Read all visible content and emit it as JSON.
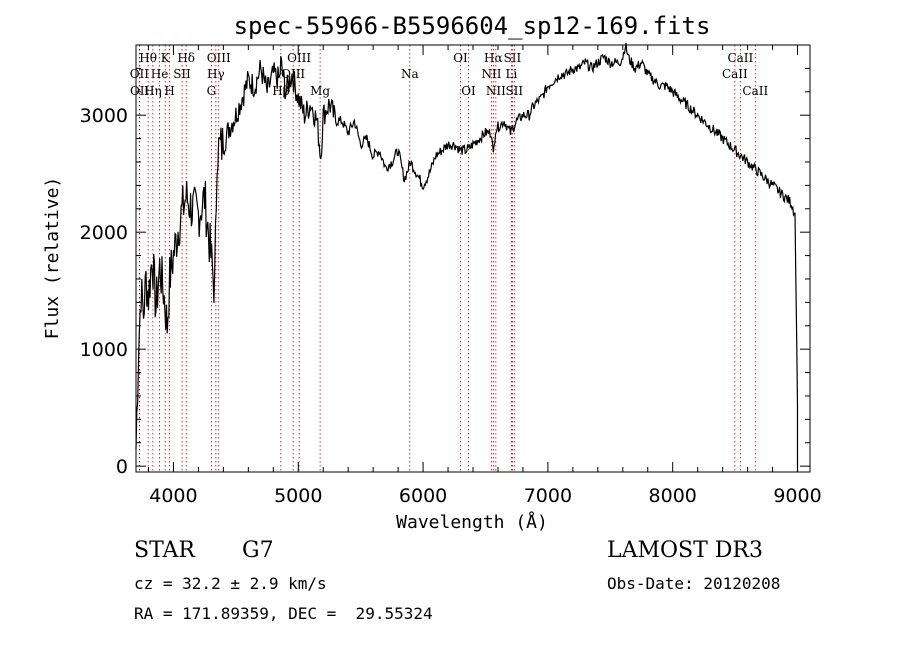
{
  "chart_data": {
    "type": "line",
    "title": "spec-55966-B5596604_sp12-169.fits",
    "xlabel": "Wavelength (Å)",
    "ylabel": "Flux (relative)",
    "xlim": [
      3700,
      9100
    ],
    "ylim": [
      -50,
      3600
    ],
    "xticks": [
      4000,
      5000,
      6000,
      7000,
      8000,
      9000
    ],
    "yticks": [
      0,
      1000,
      2000,
      3000
    ],
    "grid": false,
    "series": [
      {
        "name": "flux",
        "x": [
          3700,
          3720,
          3740,
          3760,
          3780,
          3800,
          3830,
          3860,
          3890,
          3920,
          3950,
          3970,
          4000,
          4050,
          4100,
          4150,
          4200,
          4250,
          4300,
          4330,
          4350,
          4400,
          4450,
          4500,
          4550,
          4600,
          4650,
          4700,
          4750,
          4800,
          4850,
          4860,
          4900,
          4950,
          5000,
          5050,
          5100,
          5150,
          5180,
          5200,
          5250,
          5300,
          5350,
          5400,
          5450,
          5500,
          5550,
          5600,
          5650,
          5700,
          5750,
          5800,
          5850,
          5900,
          5950,
          6000,
          6050,
          6100,
          6150,
          6200,
          6250,
          6300,
          6350,
          6400,
          6450,
          6500,
          6550,
          6563,
          6580,
          6600,
          6650,
          6700,
          6750,
          6800,
          6850,
          6870,
          6900,
          6950,
          7000,
          7050,
          7100,
          7150,
          7200,
          7250,
          7300,
          7350,
          7400,
          7450,
          7500,
          7550,
          7580,
          7600,
          7620,
          7650,
          7700,
          7750,
          7800,
          7850,
          7900,
          7950,
          8000,
          8050,
          8100,
          8150,
          8200,
          8250,
          8300,
          8350,
          8400,
          8450,
          8500,
          8550,
          8600,
          8650,
          8700,
          8750,
          8800,
          8850,
          8900,
          8950,
          8980,
          9000
        ],
        "values": [
          150,
          1000,
          1500,
          1300,
          1600,
          1450,
          1800,
          1350,
          1700,
          1500,
          1200,
          1600,
          1800,
          2100,
          2300,
          2200,
          2150,
          2300,
          1800,
          1500,
          2700,
          2750,
          2900,
          3000,
          3150,
          3300,
          3250,
          3400,
          3200,
          3350,
          3300,
          3450,
          3200,
          3350,
          3150,
          3000,
          3100,
          2950,
          2650,
          3000,
          3100,
          2950,
          2950,
          2850,
          2950,
          2750,
          2800,
          2650,
          2700,
          2550,
          2600,
          2700,
          2450,
          2600,
          2500,
          2400,
          2500,
          2650,
          2700,
          2750,
          2750,
          2700,
          2700,
          2750,
          2800,
          2850,
          2850,
          2650,
          2880,
          2900,
          2950,
          2850,
          2950,
          3000,
          3000,
          3050,
          3100,
          3150,
          3250,
          3300,
          3350,
          3350,
          3400,
          3400,
          3450,
          3400,
          3450,
          3500,
          3450,
          3450,
          3460,
          3500,
          3600,
          3480,
          3400,
          3450,
          3350,
          3300,
          3250,
          3250,
          3200,
          3150,
          3100,
          3050,
          3000,
          2950,
          2900,
          2850,
          2800,
          2750,
          2700,
          2650,
          2600,
          2550,
          2500,
          2450,
          2400,
          2350,
          2300,
          2250,
          2150,
          500
        ]
      }
    ],
    "line_markers": [
      {
        "label": "Hθ",
        "x": 3797,
        "row": 1
      },
      {
        "label": "OII",
        "x": 3727,
        "row": 2
      },
      {
        "label": "OII",
        "x": 3729,
        "row": 3
      },
      {
        "label": "K",
        "x": 3934,
        "row": 1
      },
      {
        "label": "He",
        "x": 3889,
        "row": 2
      },
      {
        "label": "Hη",
        "x": 3835,
        "row": 3
      },
      {
        "label": "Hδ",
        "x": 4102,
        "row": 1
      },
      {
        "label": "SII",
        "x": 4069,
        "row": 2
      },
      {
        "label": "H",
        "x": 3969,
        "row": 3
      },
      {
        "label": "OIII",
        "x": 4363,
        "row": 1
      },
      {
        "label": "Hγ",
        "x": 4340,
        "row": 2
      },
      {
        "label": "G",
        "x": 4304,
        "row": 3
      },
      {
        "label": "OIII",
        "x": 5007,
        "row": 1
      },
      {
        "label": "OIII",
        "x": 4959,
        "row": 2
      },
      {
        "label": "Hβ",
        "x": 4861,
        "row": 3
      },
      {
        "label": "Mg",
        "x": 5175,
        "row": 3
      },
      {
        "label": "Na",
        "x": 5894,
        "row": 2
      },
      {
        "label": "OI",
        "x": 6300,
        "row": 1
      },
      {
        "label": "OI",
        "x": 6364,
        "row": 3
      },
      {
        "label": "Hα",
        "x": 6563,
        "row": 1
      },
      {
        "label": "SII",
        "x": 6716,
        "row": 1
      },
      {
        "label": "NII",
        "x": 6548,
        "row": 2
      },
      {
        "label": "Li",
        "x": 6708,
        "row": 2
      },
      {
        "label": "NII",
        "x": 6583,
        "row": 3
      },
      {
        "label": "SII",
        "x": 6731,
        "row": 3
      },
      {
        "label": "CaII",
        "x": 8542,
        "row": 1
      },
      {
        "label": "CaII",
        "x": 8498,
        "row": 2
      },
      {
        "label": "CaII",
        "x": 8662,
        "row": 3
      }
    ]
  },
  "info": {
    "object_class": "STAR",
    "subclass": "G7",
    "cz": "cz = 32.2 ± 2.9 km/s",
    "coords": "RA = 171.89359, DEC =  29.55324",
    "survey": "LAMOST DR3",
    "obs_date": "Obs-Date: 20120208"
  }
}
